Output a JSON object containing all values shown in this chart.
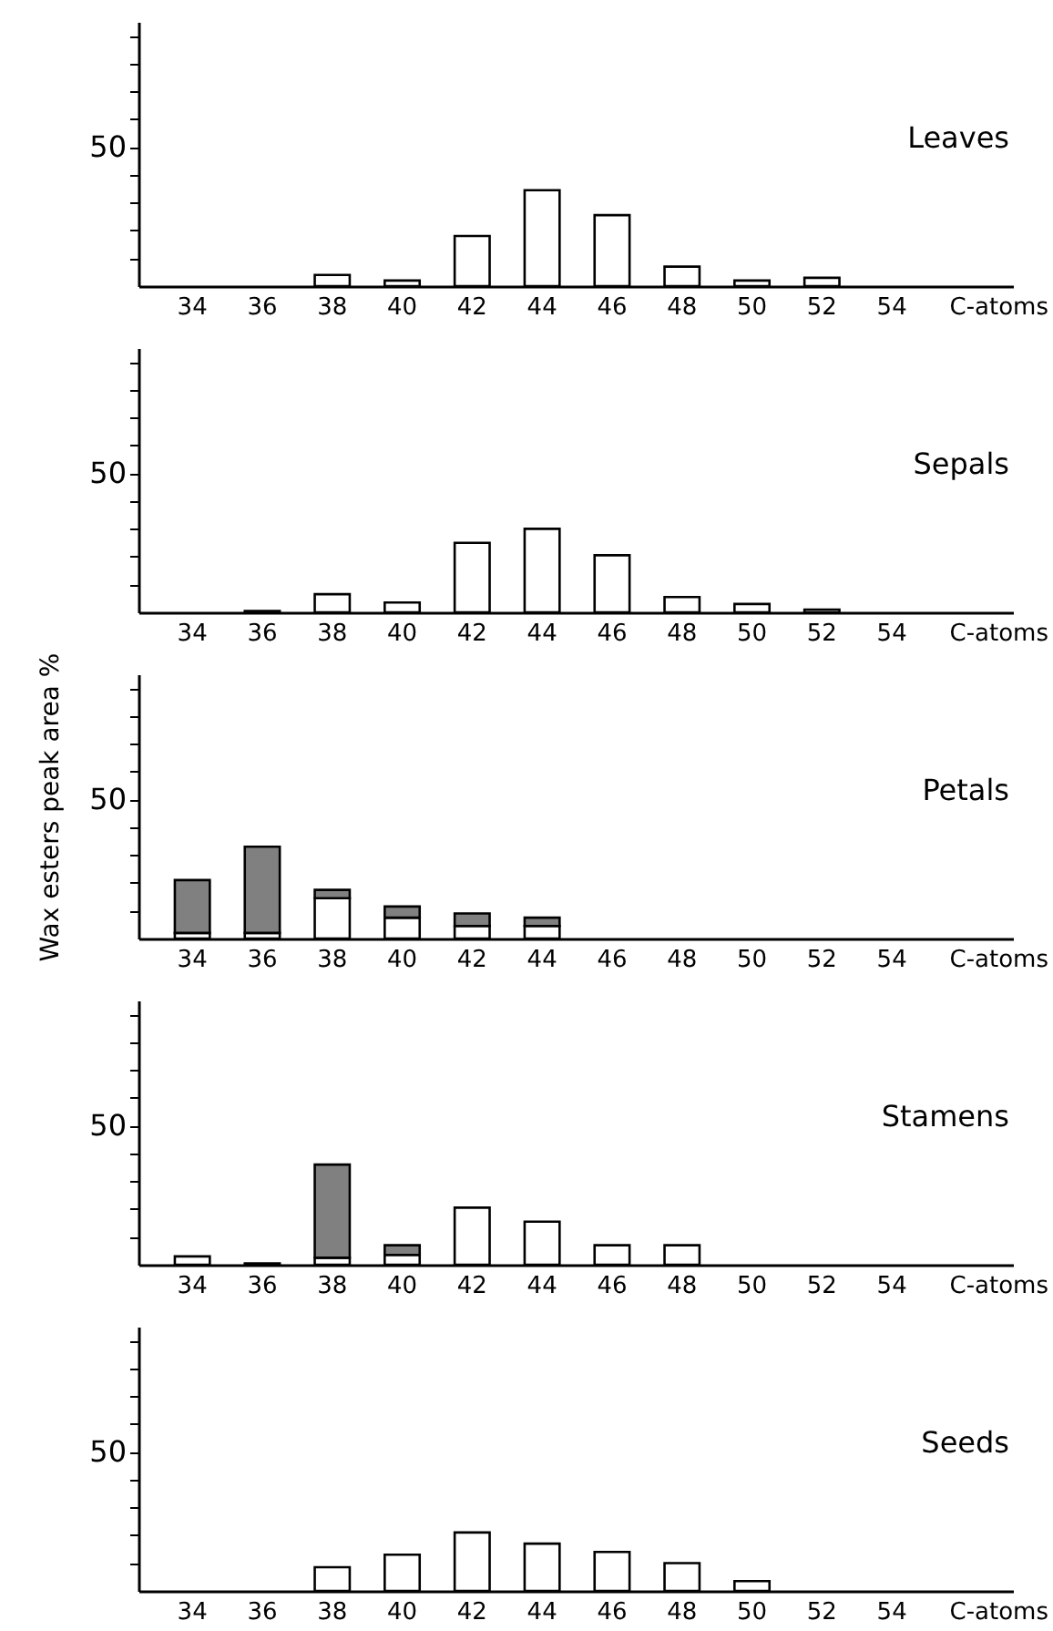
{
  "chart_data": [
    {
      "type": "bar",
      "title": "Leaves",
      "xlabel": "C-atoms",
      "categories": [
        "34",
        "36",
        "38",
        "40",
        "42",
        "44",
        "46",
        "48",
        "50",
        "52",
        "54"
      ],
      "values": [
        null,
        null,
        4,
        2,
        18,
        34.5,
        25.5,
        7,
        2,
        3,
        null
      ],
      "color": "#ffffff",
      "ylim": [
        0,
        95
      ],
      "yticks": [
        {
          "value": 10,
          "label": null
        },
        {
          "value": 20,
          "label": null
        },
        {
          "value": 30,
          "label": null
        },
        {
          "value": 40,
          "label": null
        },
        {
          "value": 50,
          "label": "50"
        },
        {
          "value": 60,
          "label": null
        },
        {
          "value": 70,
          "label": null
        },
        {
          "value": 80,
          "label": null
        },
        {
          "value": 90,
          "label": null
        }
      ],
      "grid": false
    },
    {
      "type": "bar",
      "title": "Sepals",
      "xlabel": "C-atoms",
      "categories": [
        "34",
        "36",
        "38",
        "40",
        "42",
        "44",
        "46",
        "48",
        "50",
        "52",
        "54"
      ],
      "values": [
        null,
        0.5,
        6.5,
        3.5,
        25,
        30,
        20.5,
        5.5,
        3,
        1,
        null
      ],
      "color": "#ffffff",
      "ylim": [
        0,
        95
      ],
      "yticks": [
        {
          "value": 10,
          "label": null
        },
        {
          "value": 20,
          "label": null
        },
        {
          "value": 30,
          "label": null
        },
        {
          "value": 40,
          "label": null
        },
        {
          "value": 50,
          "label": "50"
        },
        {
          "value": 60,
          "label": null
        },
        {
          "value": 70,
          "label": null
        },
        {
          "value": 80,
          "label": null
        },
        {
          "value": 90,
          "label": null
        }
      ],
      "grid": false
    },
    {
      "type": "bar",
      "title": "Petals",
      "xlabel": "C-atoms",
      "ylabel": "Wax esters peak area %",
      "categories": [
        "34",
        "36",
        "38",
        "40",
        "42",
        "44",
        "46",
        "48",
        "50",
        "52",
        "54"
      ],
      "stacked": true,
      "series": [
        {
          "color": "#ffffff",
          "values": [
            2,
            2,
            14.5,
            7.5,
            4.5,
            4.5,
            null,
            null,
            null,
            null,
            null
          ]
        },
        {
          "color": "#808080",
          "values": [
            19,
            31,
            3,
            4,
            4.5,
            3,
            null,
            null,
            null,
            null,
            null
          ]
        }
      ],
      "ylim": [
        0,
        95
      ],
      "yticks": [
        {
          "value": 10,
          "label": null
        },
        {
          "value": 20,
          "label": null
        },
        {
          "value": 30,
          "label": null
        },
        {
          "value": 40,
          "label": null
        },
        50,
        {
          "value": 60,
          "label": null
        },
        {
          "value": 70,
          "label": null
        },
        {
          "value": 80,
          "label": null
        },
        {
          "value": 90,
          "label": null
        }
      ],
      "grid": false
    },
    {
      "type": "bar",
      "title": "Stamens",
      "xlabel": "C-atoms",
      "categories": [
        "34",
        "36",
        "38",
        "40",
        "42",
        "44",
        "46",
        "48",
        "50",
        "52",
        "54"
      ],
      "stacked": true,
      "series": [
        {
          "color": "#ffffff",
          "values": [
            3,
            0.5,
            2.5,
            3.5,
            20.5,
            15.5,
            7,
            7,
            null,
            null,
            null
          ]
        },
        {
          "color": "#808080",
          "values": [
            null,
            null,
            33.5,
            3.5,
            null,
            null,
            null,
            null,
            null,
            null,
            null
          ]
        }
      ],
      "ylim": [
        0,
        95
      ],
      "yticks": [
        {
          "value": 10,
          "label": null
        },
        {
          "value": 20,
          "label": null
        },
        {
          "value": 30,
          "label": null
        },
        {
          "value": 40,
          "label": null
        },
        50,
        {
          "value": 60,
          "label": null
        },
        {
          "value": 70,
          "label": null
        },
        {
          "value": 80,
          "label": null
        },
        {
          "value": 90,
          "label": null
        }
      ],
      "grid": false
    },
    {
      "type": "bar",
      "title": "Seeds",
      "xlabel": "C-atoms",
      "categories": [
        "34",
        "36",
        "38",
        "40",
        "42",
        "44",
        "46",
        "48",
        "50",
        "52",
        "54"
      ],
      "values": [
        null,
        null,
        8.5,
        13,
        21,
        17,
        14,
        10,
        3.5,
        null,
        null
      ],
      "color": "#ffffff",
      "ylim": [
        0,
        95
      ],
      "yticks": [
        {
          "value": 10,
          "label": null
        },
        {
          "value": 20,
          "label": null
        },
        {
          "value": 30,
          "label": null
        },
        {
          "value": 40,
          "label": null
        },
        {
          "value": 50,
          "label": "50"
        },
        {
          "value": 60,
          "label": null
        },
        {
          "value": 70,
          "label": null
        },
        {
          "value": 80,
          "label": null
        },
        {
          "value": 90,
          "label": null
        }
      ],
      "grid": false
    }
  ]
}
